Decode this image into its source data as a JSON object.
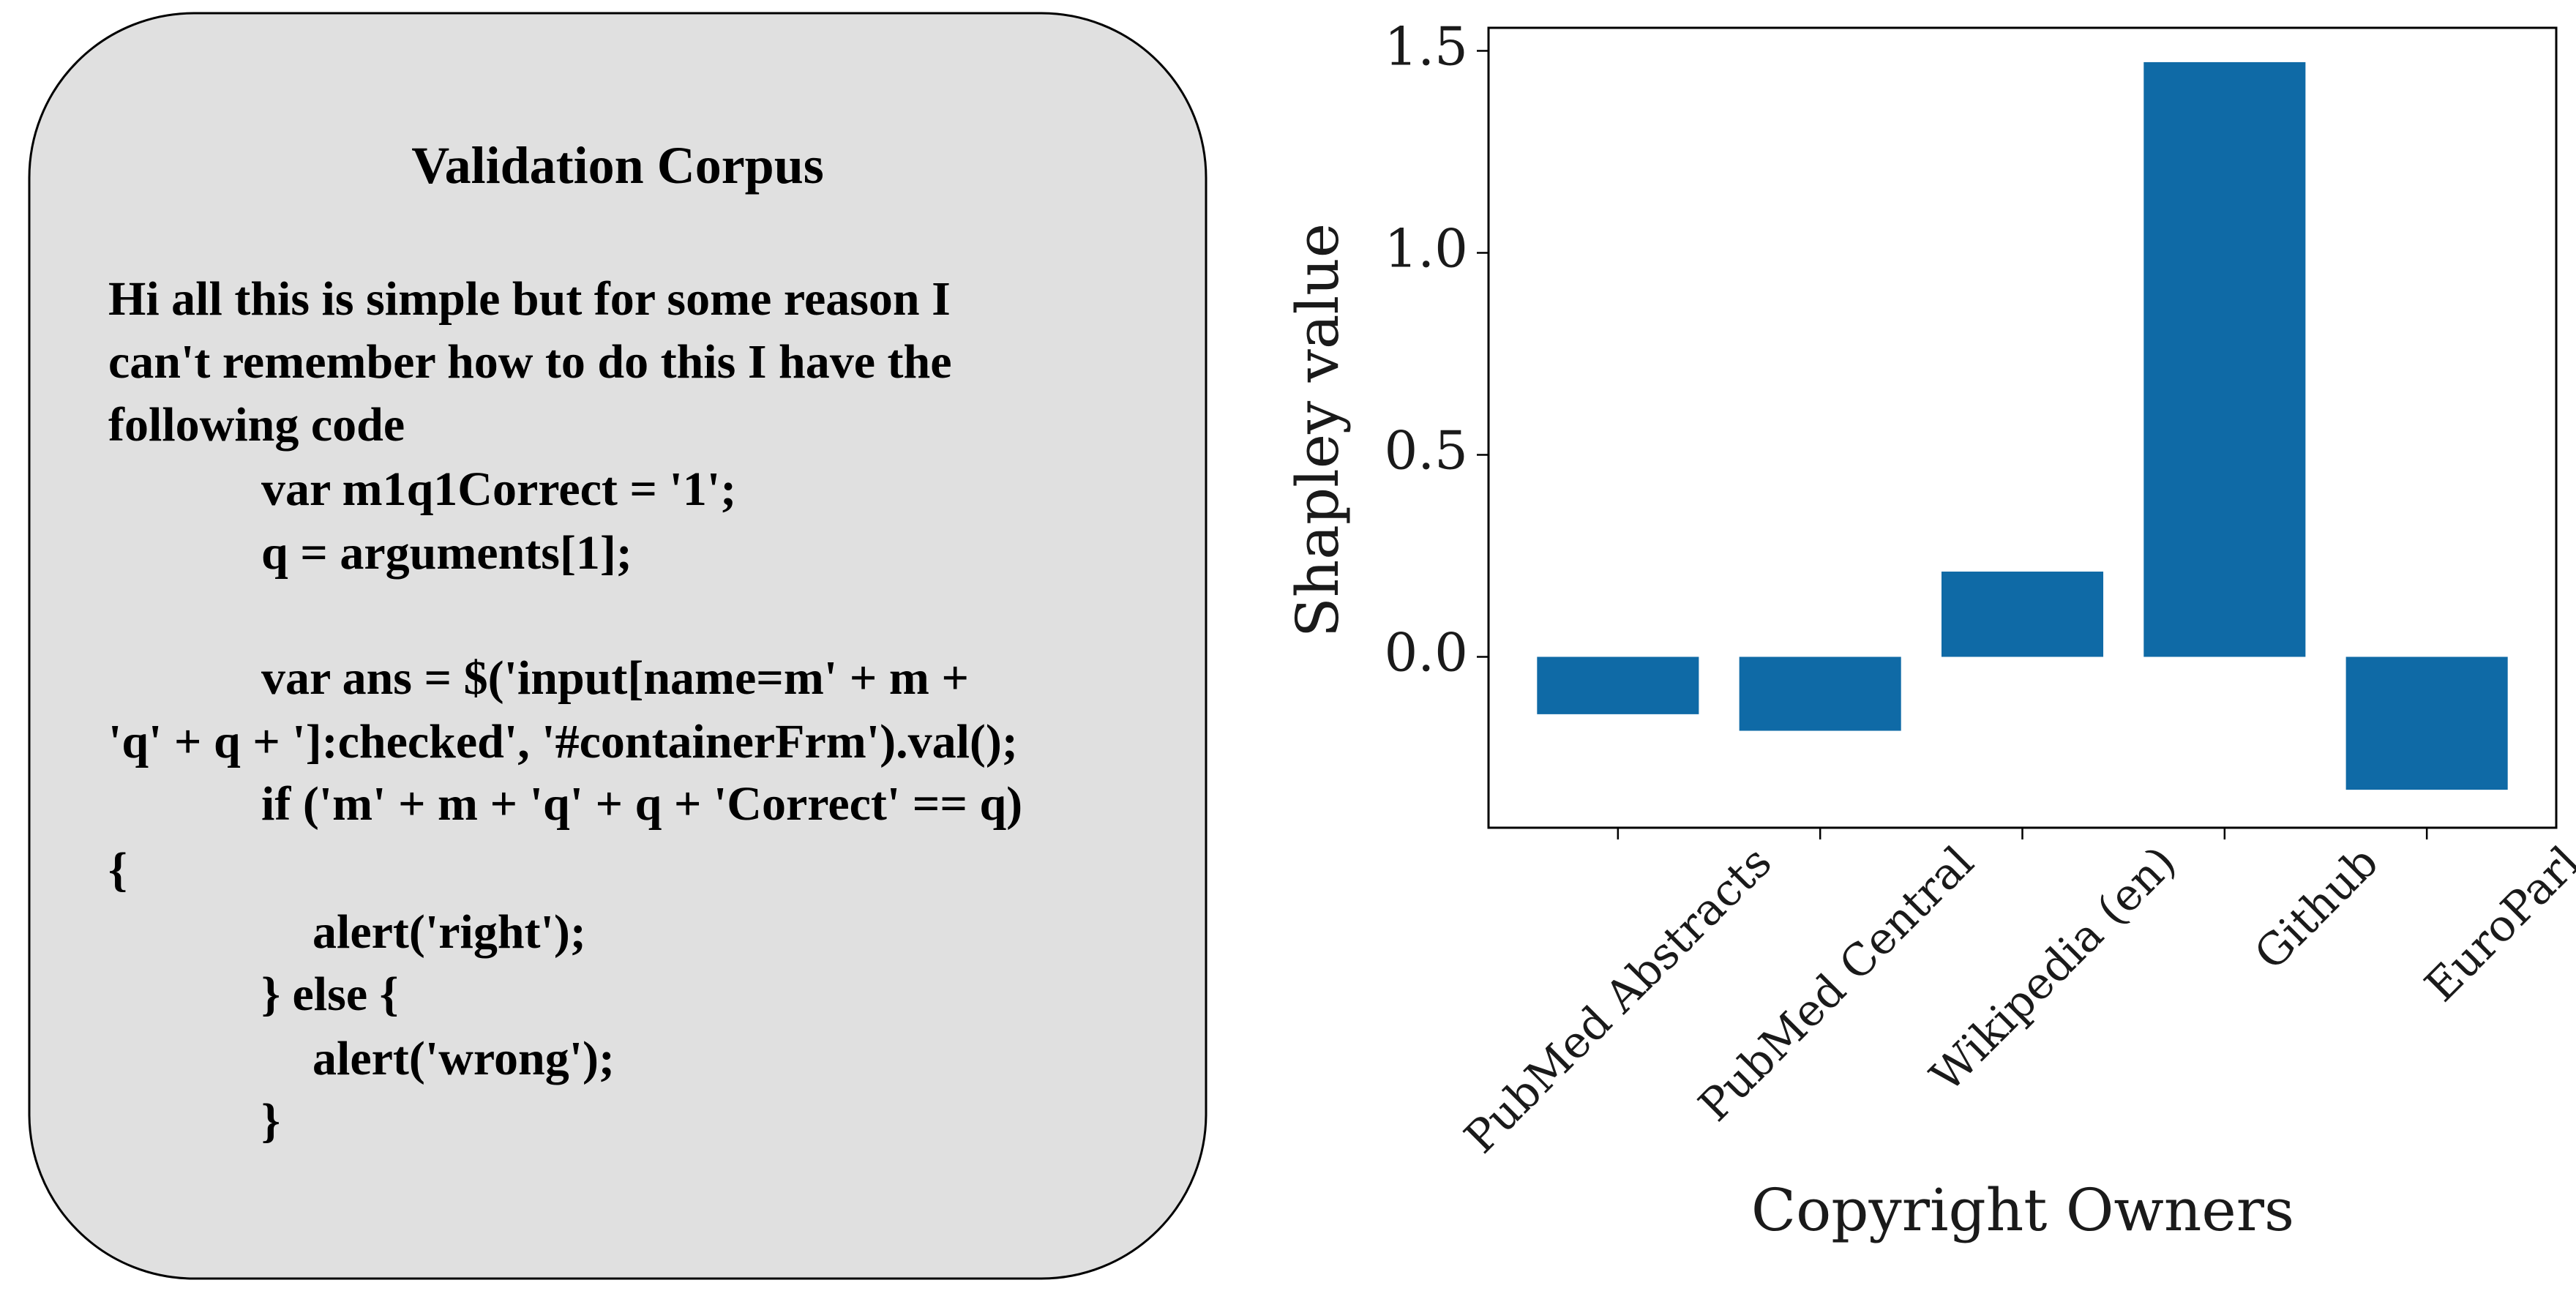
{
  "text_box": {
    "title": "Validation Corpus",
    "lines": [
      "Hi all this is simple but for some reason I",
      "can't remember how to do this I have the",
      "following code",
      "var m1q1Correct = '1';",
      "q = arguments[1];",
      "var ans = $('input[name=m' + m +",
      "'q' + q + ']:checked', '#containerFrm').val();",
      "if ('m' + m + 'q' + q + 'Correct' == q)",
      "{",
      "alert('right');",
      "} else {",
      "alert('wrong');",
      "}"
    ]
  },
  "chart_data": {
    "type": "bar",
    "xlabel": "Copyright Owners",
    "ylabel": "Shapley value",
    "categories": [
      "PubMed Abstracts",
      "PubMed Central",
      "Wikipedia (en)",
      "Github",
      "EuroParl"
    ],
    "values": [
      -0.142,
      -0.183,
      0.211,
      1.472,
      -0.329
    ],
    "color": "#0f6aa6",
    "ylim": [
      -0.423,
      1.557
    ],
    "yticks": [
      {
        "value": 0,
        "label": "0.0"
      },
      0.5,
      {
        "value": 1,
        "label": "1.0"
      },
      1.5
    ],
    "grid": false
  }
}
